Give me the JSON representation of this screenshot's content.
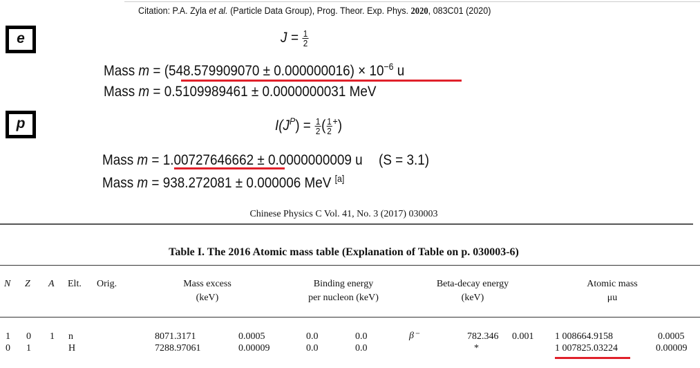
{
  "pdg": {
    "citation_prefix": "Citation: P.A. Zyla ",
    "citation_etal": "et al.",
    "citation_mid": " (Particle Data Group), Prog. Theor. Exp. Phys. ",
    "citation_year_bold": "2020",
    "citation_suffix": ", 083C01 (2020)",
    "electron": {
      "label": "e",
      "spin_lhs": "J = ",
      "spin_num": "1",
      "spin_den": "2",
      "mass_u_prefix": "Mass ",
      "mass_var": "m",
      "mass_eq": " = ",
      "mass_u_value": "(548.579909070 ± 0.000000016) × 10",
      "mass_u_exp": "−6",
      "mass_u_unit": " u",
      "mass_mev": "0.5109989461 ± 0.0000000031 MeV"
    },
    "proton": {
      "label": "p",
      "quantum_lhs": "I(J",
      "quantum_sup": "P",
      "quantum_eq": ") = ",
      "iso_num": "1",
      "iso_den": "2",
      "j_num": "1",
      "j_den": "2",
      "parity": "+",
      "close": ")",
      "mass_u_value": "1.00727646662",
      "mass_u_rest": " ± 0.0000000009 u",
      "scale_factor": "(S = 3.1)",
      "mass_mev": "938.272081 ± 0.000006 MeV ",
      "footnote": "[a]"
    },
    "mass_prefix": "Mass ",
    "mass_var": "m",
    "mass_eq": " = "
  },
  "cpc": {
    "header": "Chinese Physics C   Vol. 41, No. 3 (2017) 030003",
    "table_title": "Table I. The 2016 Atomic mass table (Explanation of Table on p. 030003-6)",
    "columns": {
      "n": "N",
      "z": "Z",
      "a": "A",
      "elt": "Elt.",
      "orig": "Orig.",
      "mass_excess_1": "Mass excess",
      "mass_excess_2": "(keV)",
      "binding_1": "Binding energy",
      "binding_2": "per nucleon (keV)",
      "beta_1": "Beta-decay energy",
      "beta_2": "(keV)",
      "atomic_1": "Atomic mass",
      "atomic_2": "μu"
    },
    "rows": [
      {
        "n": "1",
        "z": "0",
        "a": "1",
        "elt": "n",
        "mass_excess": "8071.3171",
        "mass_excess_err": "0.0005",
        "binding": "0.0",
        "binding_err": "0.0",
        "decay": "β⁻",
        "beta": "782.346",
        "beta_err": "0.001",
        "atomic_mass": "1 008664.9158",
        "atomic_mass_err": "0.0005"
      },
      {
        "n": "0",
        "z": "1",
        "a": "",
        "elt": "H",
        "mass_excess": "7288.97061",
        "mass_excess_err": "0.00009",
        "binding": "0.0",
        "binding_err": "0.0",
        "decay": "",
        "beta": "*",
        "beta_err": "",
        "atomic_mass": "1 007825.03224",
        "atomic_mass_err": "0.00009"
      }
    ]
  },
  "colors": {
    "highlight_underline": "#e0202a",
    "box_border": "#000000"
  }
}
